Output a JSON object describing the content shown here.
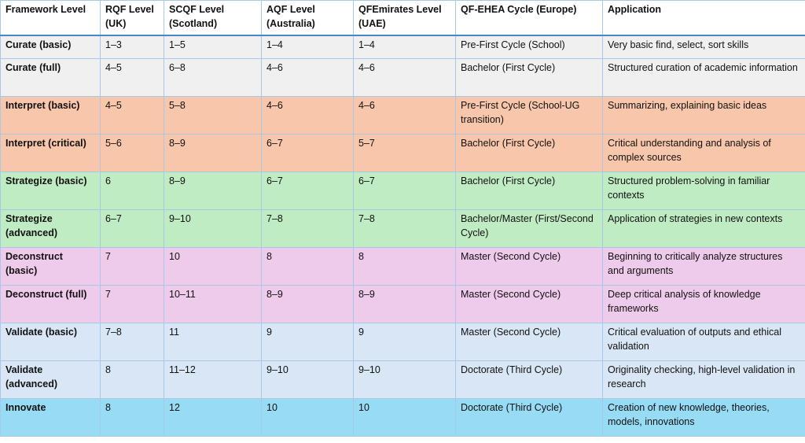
{
  "headers": [
    "Framework Level",
    "RQF Level (UK)",
    "SCQF Level (Scotland)",
    "AQF Level (Australia)",
    "QFEmirates Level (UAE)",
    "QF-EHEA Cycle (Europe)",
    "Application"
  ],
  "rows": [
    [
      "Curate (basic)",
      "1–3",
      "1–5",
      "1–4",
      "1–4",
      "Pre-First Cycle (School)",
      "Very basic find, select, sort skills"
    ],
    [
      "Curate (full)",
      "4–5",
      "6–8",
      "4–6",
      "4–6",
      "Bachelor (First Cycle)",
      "Structured curation of academic information"
    ],
    [
      "Interpret (basic)",
      "4–5",
      "5–8",
      "4–6",
      "4–6",
      "Pre-First Cycle (School-UG transition)",
      "Summarizing, explaining basic ideas"
    ],
    [
      "Interpret (critical)",
      "5–6",
      "8–9",
      "6–7",
      "5–7",
      "Bachelor (First Cycle)",
      "Critical understanding and analysis of complex sources"
    ],
    [
      "Strategize (basic)",
      "6",
      "8–9",
      "6–7",
      "6–7",
      "Bachelor (First Cycle)",
      "Structured problem-solving in familiar contexts"
    ],
    [
      "Strategize (advanced)",
      "6–7",
      "9–10",
      "7–8",
      "7–8",
      "Bachelor/Master (First/Second Cycle)",
      "Application of strategies in new contexts"
    ],
    [
      "Deconstruct (basic)",
      "7",
      "10",
      "8",
      "8",
      "Master (Second Cycle)",
      "Beginning to critically analyze structures and arguments"
    ],
    [
      "Deconstruct (full)",
      "7",
      "10–11",
      "8–9",
      "8–9",
      "Master (Second Cycle)",
      "Deep critical analysis of knowledge frameworks"
    ],
    [
      "Validate (basic)",
      "7–8",
      "11",
      "9",
      "9",
      "Master (Second Cycle)",
      "Critical evaluation of outputs and ethical validation"
    ],
    [
      "Validate (advanced)",
      "8",
      "11–12",
      "9–10",
      "9–10",
      "Doctorate (Third Cycle)",
      "Originality checking, high-level validation in research"
    ],
    [
      "Innovate",
      "8",
      "12",
      "10",
      "10",
      "Doctorate (Third Cycle)",
      "Creation of new knowledge, theories, models, innovations"
    ]
  ],
  "row_colors": {
    "gray": "#f0f0f0",
    "orange": "#f7c6ab",
    "green": "#c0ecc3",
    "pink": "#efcbeb",
    "blue": "#d8e6f5",
    "cyan": "#97dcf4"
  }
}
